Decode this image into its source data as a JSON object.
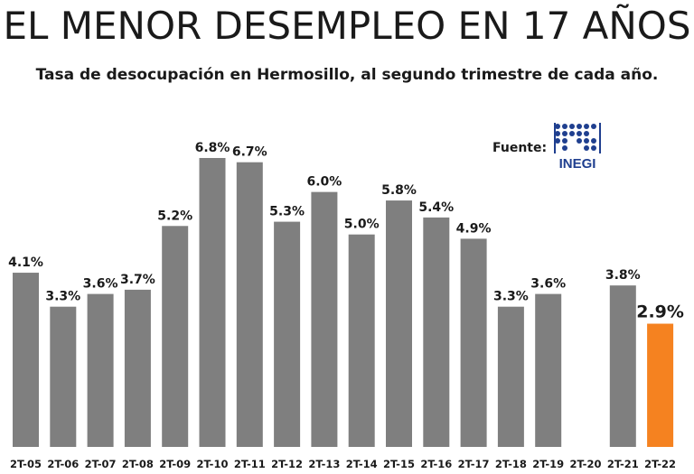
{
  "header": {
    "title": "EL MENOR DESEMPLEO EN 17 AÑOS",
    "subtitle": "Tasa de desocupación en Hermosillo, al segundo trimestre de cada año."
  },
  "source": {
    "label": "Fuente:",
    "logo_text": "INEGI",
    "logo_icon": "inegi-logo-icon"
  },
  "colors": {
    "bar": "#7f7f7f",
    "highlight": "#f58220",
    "text": "#1a1a1a",
    "logo": "#1f3f8f"
  },
  "chart_data": {
    "type": "bar",
    "title": "",
    "xlabel": "",
    "ylabel": "",
    "ylim": [
      0,
      7.2
    ],
    "grid": false,
    "categories": [
      "2T-05",
      "2T-06",
      "2T-07",
      "2T-08",
      "2T-09",
      "2T-10",
      "2T-11",
      "2T-12",
      "2T-13",
      "2T-14",
      "2T-15",
      "2T-16",
      "2T-17",
      "2T-18",
      "2T-19",
      "2T-20",
      "2T-21",
      "2T-22"
    ],
    "values": [
      4.1,
      3.3,
      3.6,
      3.7,
      5.2,
      6.8,
      6.7,
      5.3,
      6.0,
      5.0,
      5.8,
      5.4,
      4.9,
      3.3,
      3.6,
      null,
      3.8,
      2.9
    ],
    "labels": [
      "4.1%",
      "3.3%",
      "3.6%",
      "3.7%",
      "5.2%",
      "6.8%",
      "6.7%",
      "5.3%",
      "6.0%",
      "5.0%",
      "5.8%",
      "5.4%",
      "4.9%",
      "3.3%",
      "3.6%",
      "",
      "3.8%",
      "2.9%"
    ],
    "highlight": [
      "2T-22"
    ]
  }
}
